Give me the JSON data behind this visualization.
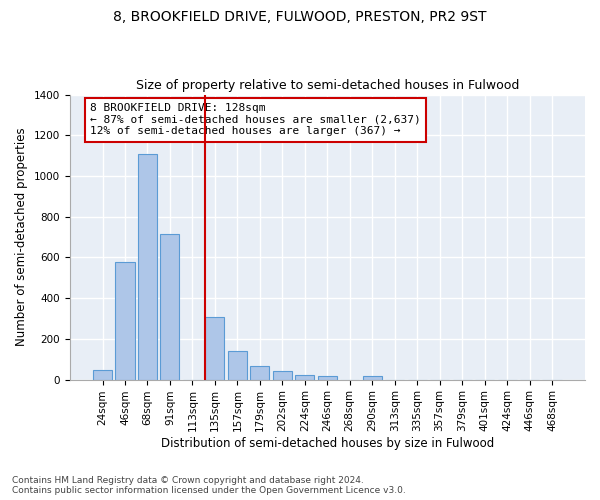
{
  "title": "8, BROOKFIELD DRIVE, FULWOOD, PRESTON, PR2 9ST",
  "subtitle": "Size of property relative to semi-detached houses in Fulwood",
  "xlabel": "Distribution of semi-detached houses by size in Fulwood",
  "ylabel": "Number of semi-detached properties",
  "footnote": "Contains HM Land Registry data © Crown copyright and database right 2024.\nContains public sector information licensed under the Open Government Licence v3.0.",
  "bar_labels": [
    "24sqm",
    "46sqm",
    "68sqm",
    "91sqm",
    "113sqm",
    "135sqm",
    "157sqm",
    "179sqm",
    "202sqm",
    "224sqm",
    "246sqm",
    "268sqm",
    "290sqm",
    "313sqm",
    "335sqm",
    "357sqm",
    "379sqm",
    "401sqm",
    "424sqm",
    "446sqm",
    "468sqm"
  ],
  "bar_values": [
    48,
    578,
    1107,
    713,
    0,
    307,
    140,
    65,
    40,
    25,
    18,
    0,
    17,
    0,
    0,
    0,
    0,
    0,
    0,
    0,
    0
  ],
  "bar_color": "#aec6e8",
  "bar_edge_color": "#5b9bd5",
  "annotation_text": "8 BROOKFIELD DRIVE: 128sqm\n← 87% of semi-detached houses are smaller (2,637)\n12% of semi-detached houses are larger (367) →",
  "annotation_box_color": "#ffffff",
  "annotation_box_edge": "#cc0000",
  "vline_color": "#cc0000",
  "ylim": [
    0,
    1400
  ],
  "yticks": [
    0,
    200,
    400,
    600,
    800,
    1000,
    1200,
    1400
  ],
  "background_color": "#e8eef6",
  "grid_color": "#ffffff",
  "title_fontsize": 10,
  "subtitle_fontsize": 9,
  "axis_label_fontsize": 8.5,
  "tick_fontsize": 7.5,
  "annotation_fontsize": 8,
  "footnote_fontsize": 6.5
}
